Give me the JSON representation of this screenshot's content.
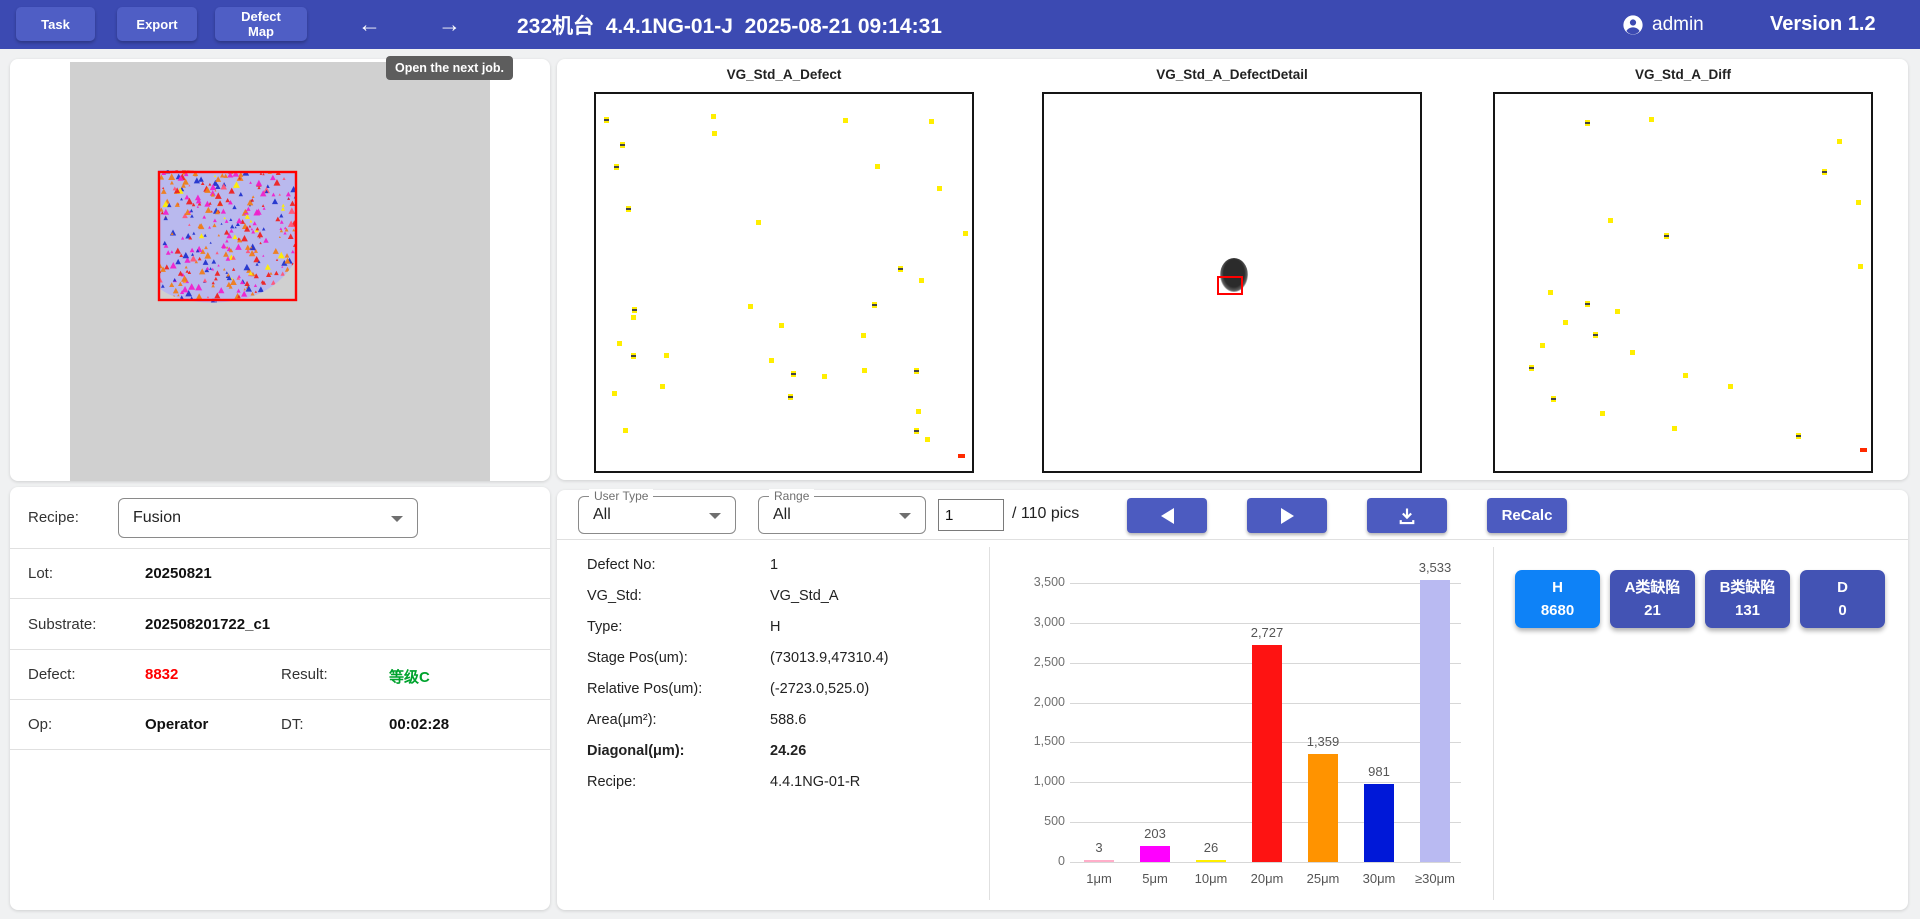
{
  "header": {
    "task": "Task",
    "export": "Export",
    "defect_map": "Defect Map",
    "back_icon": "←",
    "forward_icon": "→",
    "title": "232机台  4.4.1NG-01-J  2025-08-21 09:14:31",
    "user": "admin",
    "version": "Version 1.2"
  },
  "tooltip": {
    "text": "Open the next job."
  },
  "panels": [
    {
      "title": "VG_Std_A_Defect",
      "dots": [
        [
          2.2,
          6
        ],
        [
          30.5,
          5.3
        ],
        [
          30.8,
          9.9
        ],
        [
          6.4,
          12.8
        ],
        [
          65.8,
          6.3
        ],
        [
          88.5,
          6.5
        ],
        [
          4.9,
          18.6
        ],
        [
          74.3,
          18.5
        ],
        [
          90.7,
          24.3
        ],
        [
          8,
          29.6
        ],
        [
          42.5,
          33.4
        ],
        [
          97.5,
          36.3
        ],
        [
          80.3,
          45.5
        ],
        [
          85.8,
          48.9
        ],
        [
          40.4,
          55.8
        ],
        [
          9.5,
          56.6
        ],
        [
          9.3,
          58.6
        ],
        [
          48.7,
          60.8
        ],
        [
          73.3,
          55.1
        ],
        [
          70.5,
          63.3
        ],
        [
          5.7,
          65.5
        ],
        [
          9.3,
          68.6
        ],
        [
          18,
          68.6
        ],
        [
          46.1,
          69.9
        ],
        [
          51.9,
          73.5
        ],
        [
          60,
          74.4
        ],
        [
          70.8,
          72.7
        ],
        [
          84.7,
          72.7
        ],
        [
          17,
          77
        ],
        [
          4.2,
          78.8
        ],
        [
          51,
          79.5
        ],
        [
          85.2,
          83.5
        ],
        [
          7.1,
          88.7
        ],
        [
          84.7,
          88.5
        ],
        [
          87.4,
          90.9
        ]
      ],
      "red_dot": [
        96.3,
        95.5
      ]
    },
    {
      "title": "VG_Std_A_DefectDetail",
      "blob": true
    },
    {
      "title": "VG_Std_A_Diff",
      "dots": [
        [
          24,
          7
        ],
        [
          41,
          6
        ],
        [
          91,
          12
        ],
        [
          87,
          20
        ],
        [
          96,
          28
        ],
        [
          30,
          33
        ],
        [
          45,
          37
        ],
        [
          96.5,
          45
        ],
        [
          14,
          52
        ],
        [
          24,
          55
        ],
        [
          32,
          57
        ],
        [
          18,
          60
        ],
        [
          26,
          63
        ],
        [
          12,
          66
        ],
        [
          36,
          68
        ],
        [
          9,
          72
        ],
        [
          50,
          74
        ],
        [
          62,
          77
        ],
        [
          15,
          80
        ],
        [
          28,
          84
        ],
        [
          47,
          88
        ],
        [
          80,
          90
        ]
      ],
      "red_dot": [
        97,
        94
      ]
    }
  ],
  "left_card": {
    "recipe_label": "Recipe:",
    "recipe_value": "Fusion",
    "lot_label": "Lot:",
    "lot_value": "20250821",
    "substrate_label": "Substrate:",
    "substrate_value": "202508201722_c1",
    "defect_label": "Defect:",
    "defect_value": "8832",
    "defect_color": "#ff0000",
    "result_label": "Result:",
    "result_value": "等级C",
    "result_color": "#00a32e",
    "op_label": "Op:",
    "op_value": "Operator",
    "dt_label": "DT:",
    "dt_value": "00:02:28"
  },
  "toolbar": {
    "user_type_label": "User Type",
    "user_type_value": "All",
    "range_label": "Range",
    "range_value": "All",
    "page_value": "1",
    "page_total": "/ 110 pics",
    "prev_icon": "left-triangle",
    "next_icon": "right-triangle",
    "download_icon": "download",
    "recalc_label": "ReCalc"
  },
  "defect_info": {
    "rows": [
      {
        "label": "Defect No:",
        "value": "1",
        "bold": false
      },
      {
        "label": "VG_Std:",
        "value": "VG_Std_A",
        "bold": false
      },
      {
        "label": "Type:",
        "value": "H",
        "bold": false
      },
      {
        "label": "Stage Pos(um):",
        "value": "(73013.9,47310.4)",
        "bold": false
      },
      {
        "label": "Relative Pos(um):",
        "value": "(-2723.0,525.0)",
        "bold": false
      },
      {
        "label": "Area(μm²):",
        "value": "588.6",
        "bold": false
      },
      {
        "label": "Diagonal(μm):",
        "value": "24.26",
        "bold": true
      },
      {
        "label": "Recipe:",
        "value": "4.4.1NG-01-R",
        "bold": false
      }
    ]
  },
  "chart_data": {
    "type": "bar",
    "categories": [
      "1μm",
      "5μm",
      "10μm",
      "20μm",
      "25μm",
      "30μm",
      "≥30μm"
    ],
    "values": [
      3,
      203,
      26,
      2727,
      1359,
      981,
      3533
    ],
    "value_labels": [
      "3",
      "203",
      "26",
      "2,727",
      "1,359",
      "981",
      "3,533"
    ],
    "colors": [
      "#ffaec9",
      "#ff00ff",
      "#ffef00",
      "#fe1312",
      "#ff9300",
      "#0018d8",
      "#b9baf2"
    ],
    "ylim": [
      0,
      3500
    ],
    "yticks": [
      0,
      500,
      1000,
      1500,
      2000,
      2500,
      3000,
      3500
    ],
    "ytick_labels": [
      "0",
      "500",
      "1,000",
      "1,500",
      "2,000",
      "2,500",
      "3,000",
      "3,500"
    ],
    "grid": true,
    "title": "",
    "xlabel": "",
    "ylabel": ""
  },
  "class_buttons": [
    {
      "line1": "H",
      "line2": "8680",
      "color": "#0e82f7"
    },
    {
      "line1": "A类缺陷",
      "line2": "21",
      "color": "#4353b4"
    },
    {
      "line1": "B类缺陷",
      "line2": "131",
      "color": "#4353b4"
    },
    {
      "line1": "D",
      "line2": "0",
      "color": "#4353b4"
    }
  ],
  "wafer": {
    "bg_color": "#b9b9ee",
    "frame_color": "#ff0000",
    "noise_colors": [
      "#ee2222",
      "#2233cc",
      "#ee22cc",
      "#ef7d1a",
      "#ff5577",
      "#ffee00"
    ]
  }
}
